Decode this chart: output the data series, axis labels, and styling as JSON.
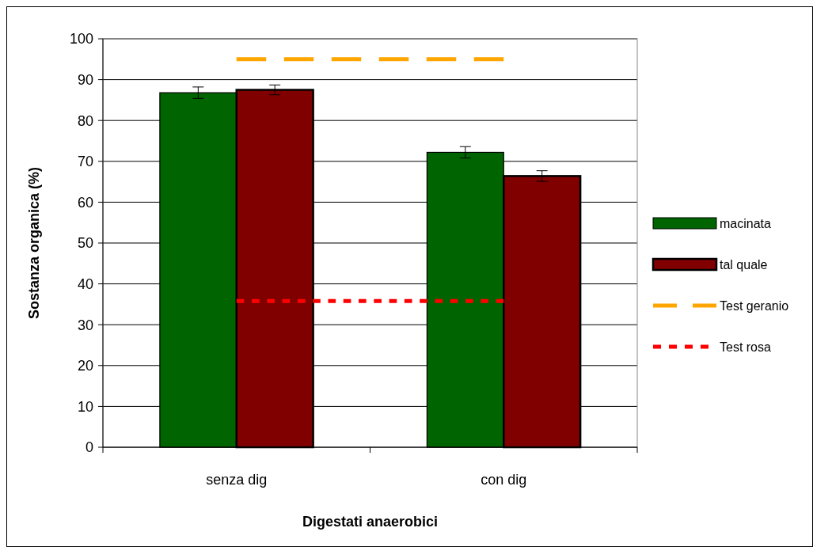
{
  "chart_data": {
    "type": "bar",
    "xlabel": "Digestati anaerobici",
    "ylabel": "Sostanza organica (%)",
    "categories": [
      "senza dig",
      "con dig"
    ],
    "series": [
      {
        "name": "macinata",
        "color": "#006400",
        "values": [
          86.8,
          72.2
        ],
        "errors": [
          1.4,
          1.4
        ]
      },
      {
        "name": "tal quale",
        "color": "#800000",
        "values": [
          87.5,
          66.4
        ],
        "errors": [
          1.2,
          1.3
        ]
      },
      {
        "name": "Test geranio",
        "type": "line",
        "color": "#ffa500",
        "values": [
          95,
          95
        ],
        "line_style": "dashed"
      },
      {
        "name": "Test rosa",
        "type": "line",
        "color": "#ff0000",
        "values": [
          35.8,
          35.8
        ],
        "line_style": "dotted"
      }
    ],
    "ylim": [
      0,
      100
    ],
    "yticks": [
      0,
      10,
      20,
      30,
      40,
      50,
      60,
      70,
      80,
      90,
      100
    ],
    "grid": "y",
    "legend": "right"
  }
}
